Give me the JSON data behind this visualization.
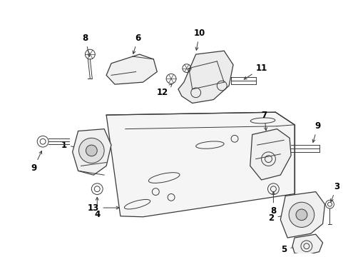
{
  "background_color": "#ffffff",
  "line_color": "#3a3a3a",
  "label_color": "#000000",
  "fig_width": 4.89,
  "fig_height": 3.6,
  "dpi": 100
}
